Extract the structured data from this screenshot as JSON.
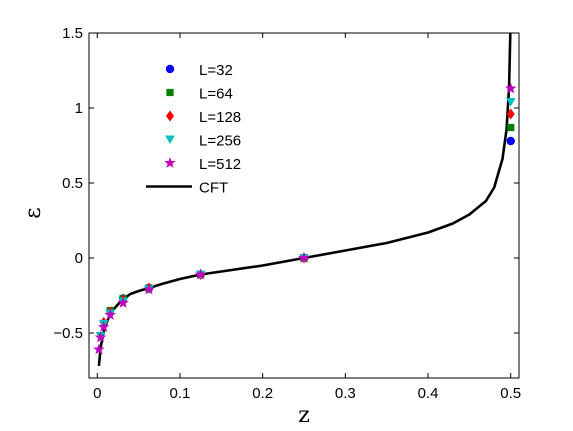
{
  "chart_data": {
    "type": "scatter",
    "xlabel": "z",
    "ylabel": "ε",
    "xlim": [
      -0.01,
      0.51
    ],
    "ylim": [
      -0.8,
      1.5
    ],
    "x_ticks": [
      0,
      0.1,
      0.2,
      0.3,
      0.4,
      0.5
    ],
    "x_tick_labels": [
      "0",
      "0.1",
      "0.2",
      "0.3",
      "0.4",
      "0.5"
    ],
    "y_ticks": [
      -0.5,
      0,
      0.5,
      1,
      1.5
    ],
    "y_tick_labels": [
      "−0.5",
      "0",
      "0.5",
      "1",
      "1.5"
    ],
    "legend_position": "top-left",
    "series": [
      {
        "name": "L=32",
        "marker": "circle",
        "color": "#0000ff",
        "x": [
          0.03125,
          0.0625,
          0.125,
          0.25,
          0.5
        ],
        "y": [
          -0.27,
          -0.2,
          -0.11,
          0.0,
          0.78
        ]
      },
      {
        "name": "L=64",
        "marker": "square",
        "color": "#008000",
        "x": [
          0.015625,
          0.03125,
          0.0625,
          0.125,
          0.25,
          0.5
        ],
        "y": [
          -0.35,
          -0.27,
          -0.2,
          -0.11,
          0.0,
          0.87
        ]
      },
      {
        "name": "L=128",
        "marker": "diamond",
        "color": "#ff0000",
        "x": [
          0.0078125,
          0.015625,
          0.03125,
          0.0625,
          0.125,
          0.25,
          0.5
        ],
        "y": [
          -0.43,
          -0.36,
          -0.28,
          -0.2,
          -0.11,
          0.0,
          0.96
        ]
      },
      {
        "name": "L=256",
        "marker": "triangle-down",
        "color": "#00bfbf",
        "x": [
          0.00390625,
          0.0078125,
          0.015625,
          0.03125,
          0.0625,
          0.125,
          0.25,
          0.5
        ],
        "y": [
          -0.52,
          -0.44,
          -0.37,
          -0.29,
          -0.21,
          -0.11,
          0.0,
          1.04
        ]
      },
      {
        "name": "L=512",
        "marker": "star",
        "color": "#bf00bf",
        "x": [
          0.001953125,
          0.00390625,
          0.0078125,
          0.015625,
          0.03125,
          0.0625,
          0.125,
          0.25,
          0.5
        ],
        "y": [
          -0.61,
          -0.53,
          -0.46,
          -0.38,
          -0.3,
          -0.21,
          -0.11,
          0.0,
          1.13
        ]
      },
      {
        "name": "CFT",
        "type": "line",
        "color": "#000000",
        "x": [
          0.002,
          0.004,
          0.007,
          0.01,
          0.015,
          0.02,
          0.03,
          0.04,
          0.05,
          0.0625,
          0.08,
          0.1,
          0.125,
          0.15,
          0.2,
          0.25,
          0.3,
          0.35,
          0.4,
          0.43,
          0.45,
          0.47,
          0.48,
          0.49,
          0.495,
          0.498,
          0.4995
        ],
        "y": [
          -0.72,
          -0.6,
          -0.51,
          -0.45,
          -0.38,
          -0.34,
          -0.28,
          -0.24,
          -0.22,
          -0.2,
          -0.17,
          -0.14,
          -0.11,
          -0.09,
          -0.05,
          0.0,
          0.05,
          0.1,
          0.17,
          0.23,
          0.29,
          0.38,
          0.47,
          0.66,
          0.86,
          1.14,
          1.5
        ]
      }
    ]
  }
}
